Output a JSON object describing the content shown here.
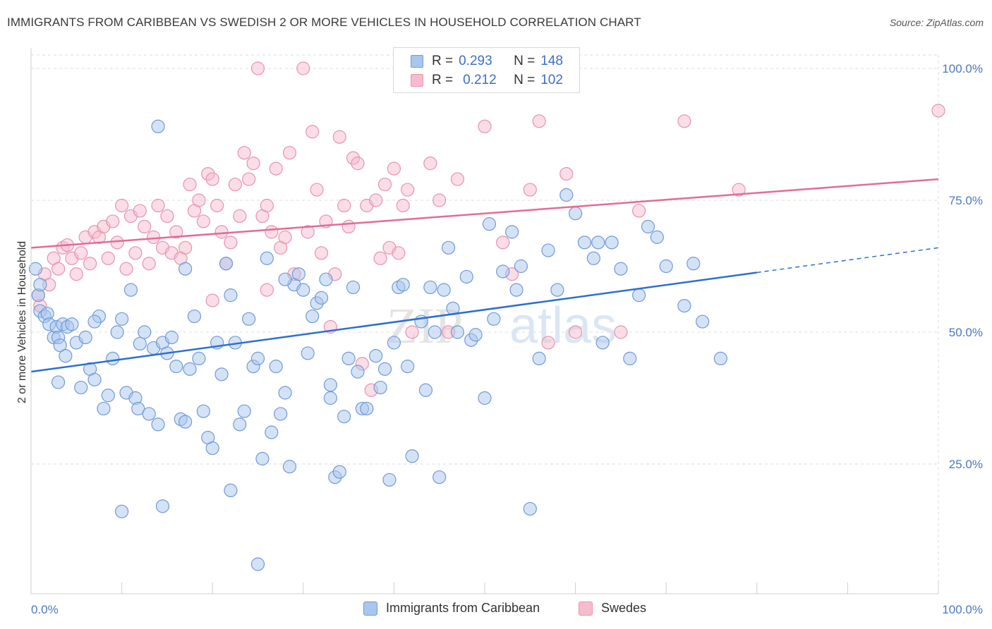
{
  "title": "IMMIGRANTS FROM CARIBBEAN VS SWEDISH 2 OR MORE VEHICLES IN HOUSEHOLD CORRELATION CHART",
  "source": "Source: ZipAtlas.com",
  "watermark_a": "ZIP",
  "watermark_b": "atlas",
  "legend_top": {
    "rows": [
      {
        "r_label": "R =",
        "r_value": "0.293",
        "n_label": "N =",
        "n_value": "148"
      },
      {
        "r_label": "R =",
        "r_value": "0.212",
        "n_label": "N =",
        "n_value": "102"
      }
    ]
  },
  "legend_bottom": [
    "Immigrants from Caribbean",
    "Swedes"
  ],
  "colors": {
    "blue_fill": "#a9c6ee",
    "blue_stroke": "#6f9bd8",
    "blue_line": "#2d6fd1",
    "pink_fill": "#f6bccd",
    "pink_stroke": "#e893ad",
    "pink_line": "#e46b97",
    "grid": "#dedede",
    "tick_text": "#4a78c2"
  },
  "chart_data": {
    "type": "scatter",
    "title": "IMMIGRANTS FROM CARIBBEAN VS SWEDISH 2 OR MORE VEHICLES IN HOUSEHOLD CORRELATION CHART",
    "xlabel": "",
    "ylabel": "2 or more Vehicles in Household",
    "xlim": [
      0,
      100
    ],
    "ylim": [
      0,
      105
    ],
    "x_tick_labels": [
      "0.0%",
      "100.0%"
    ],
    "y_ticks": [
      25,
      50,
      75,
      100
    ],
    "y_tick_labels": [
      "25.0%",
      "50.0%",
      "75.0%",
      "100.0%"
    ],
    "grid": true,
    "legend_position": "top-center",
    "series": [
      {
        "name": "Immigrants from Caribbean",
        "R": 0.293,
        "N": 148,
        "trend": {
          "x0": 0,
          "y0": 42.5,
          "x1": 80,
          "y1": 61.3,
          "dashed_to_x": 100,
          "dashed_to_y": 66.0
        },
        "points": [
          [
            0.5,
            62
          ],
          [
            0.8,
            57
          ],
          [
            1,
            54
          ],
          [
            1.5,
            53
          ],
          [
            1.8,
            53.5
          ],
          [
            2,
            51.5
          ],
          [
            2.5,
            49
          ],
          [
            2.8,
            51
          ],
          [
            3,
            49
          ],
          [
            3.2,
            47.5
          ],
          [
            3.5,
            51.5
          ],
          [
            3.8,
            45.5
          ],
          [
            4,
            51
          ],
          [
            4.5,
            51.5
          ],
          [
            5,
            48
          ],
          [
            5.5,
            39.5
          ],
          [
            6,
            49
          ],
          [
            6.5,
            43
          ],
          [
            7,
            41
          ],
          [
            7.5,
            53
          ],
          [
            8,
            35.5
          ],
          [
            8.5,
            38
          ],
          [
            9,
            45
          ],
          [
            9.5,
            50
          ],
          [
            10,
            52.5
          ],
          [
            10.5,
            38.5
          ],
          [
            11,
            58
          ],
          [
            11.5,
            37.5
          ],
          [
            11.8,
            35.5
          ],
          [
            12,
            47.8
          ],
          [
            12.5,
            50
          ],
          [
            13,
            34.5
          ],
          [
            13.5,
            47
          ],
          [
            14,
            32.5
          ],
          [
            14.5,
            48
          ],
          [
            15,
            46
          ],
          [
            15.5,
            49
          ],
          [
            16,
            43.5
          ],
          [
            16.5,
            33.5
          ],
          [
            17,
            33
          ],
          [
            17.5,
            43
          ],
          [
            18,
            53
          ],
          [
            18.5,
            45
          ],
          [
            19,
            35
          ],
          [
            19.5,
            30
          ],
          [
            20,
            28
          ],
          [
            20.5,
            48
          ],
          [
            21,
            42
          ],
          [
            21.5,
            63
          ],
          [
            22,
            57
          ],
          [
            22.5,
            48
          ],
          [
            23,
            32.5
          ],
          [
            23.5,
            35
          ],
          [
            24,
            52.5
          ],
          [
            24.5,
            43.5
          ],
          [
            25,
            45
          ],
          [
            25.5,
            26
          ],
          [
            26,
            64
          ],
          [
            26.5,
            31
          ],
          [
            27,
            43.5
          ],
          [
            27.5,
            34.5
          ],
          [
            28,
            38.5
          ],
          [
            28.5,
            24.5
          ],
          [
            29,
            59
          ],
          [
            29.5,
            61
          ],
          [
            30,
            58
          ],
          [
            30.5,
            46
          ],
          [
            31,
            53
          ],
          [
            31.5,
            55.5
          ],
          [
            32,
            56.5
          ],
          [
            32.5,
            60
          ],
          [
            33,
            37.5
          ],
          [
            33.5,
            22.5
          ],
          [
            34,
            23.5
          ],
          [
            34.5,
            34
          ],
          [
            35,
            45
          ],
          [
            35.5,
            58.5
          ],
          [
            36,
            42.5
          ],
          [
            36.5,
            35.5
          ],
          [
            37,
            35.5
          ],
          [
            38,
            45.5
          ],
          [
            38.5,
            39.5
          ],
          [
            39,
            43
          ],
          [
            39.5,
            22
          ],
          [
            40,
            48
          ],
          [
            40.5,
            58.5
          ],
          [
            41,
            59
          ],
          [
            41.5,
            43.5
          ],
          [
            42,
            26.5
          ],
          [
            43,
            52
          ],
          [
            43.5,
            39
          ],
          [
            44,
            58.5
          ],
          [
            44.5,
            50
          ],
          [
            45,
            22.5
          ],
          [
            45.5,
            58
          ],
          [
            46,
            66
          ],
          [
            46.5,
            54.5
          ],
          [
            47,
            50
          ],
          [
            48,
            60.5
          ],
          [
            48.5,
            48.5
          ],
          [
            49,
            49.5
          ],
          [
            50,
            37.5
          ],
          [
            50.5,
            70.5
          ],
          [
            51,
            52.5
          ],
          [
            52,
            61.5
          ],
          [
            53,
            69
          ],
          [
            53.5,
            58
          ],
          [
            54,
            62.5
          ],
          [
            55,
            16.5
          ],
          [
            56,
            45
          ],
          [
            57,
            65.5
          ],
          [
            58,
            58
          ],
          [
            59,
            76
          ],
          [
            60,
            72.5
          ],
          [
            61,
            67
          ],
          [
            62,
            64
          ],
          [
            62.5,
            67
          ],
          [
            63,
            48
          ],
          [
            64,
            67
          ],
          [
            65,
            62
          ],
          [
            66,
            45
          ],
          [
            67,
            57
          ],
          [
            68,
            70
          ],
          [
            69,
            68
          ],
          [
            70,
            62.5
          ],
          [
            72,
            55
          ],
          [
            73,
            63
          ],
          [
            74,
            52
          ],
          [
            76,
            45
          ],
          [
            14,
            89
          ],
          [
            1,
            59
          ],
          [
            7,
            52
          ],
          [
            17,
            62
          ],
          [
            28,
            60
          ],
          [
            33,
            40
          ],
          [
            3,
            40.5
          ],
          [
            10,
            16
          ],
          [
            14.5,
            17
          ],
          [
            22,
            20
          ],
          [
            25,
            6
          ]
        ]
      },
      {
        "name": "Swedes",
        "R": 0.212,
        "N": 102,
        "trend": {
          "x0": 0,
          "y0": 66.0,
          "x1": 100,
          "y1": 79.0
        },
        "points": [
          [
            0.8,
            57
          ],
          [
            1,
            55
          ],
          [
            1.5,
            61
          ],
          [
            2,
            59
          ],
          [
            2.5,
            64
          ],
          [
            3,
            62
          ],
          [
            3.5,
            66
          ],
          [
            4,
            66.5
          ],
          [
            4.5,
            64
          ],
          [
            5,
            61
          ],
          [
            5.5,
            65
          ],
          [
            6,
            68
          ],
          [
            6.5,
            63
          ],
          [
            7,
            69
          ],
          [
            7.5,
            68
          ],
          [
            8,
            70
          ],
          [
            8.5,
            64
          ],
          [
            9,
            71
          ],
          [
            9.5,
            67
          ],
          [
            10,
            74
          ],
          [
            10.5,
            62
          ],
          [
            11,
            72
          ],
          [
            11.5,
            65
          ],
          [
            12,
            73
          ],
          [
            12.5,
            70
          ],
          [
            13,
            63
          ],
          [
            13.5,
            68
          ],
          [
            14,
            74
          ],
          [
            14.5,
            66
          ],
          [
            15,
            72
          ],
          [
            15.5,
            65
          ],
          [
            16,
            69
          ],
          [
            16.5,
            64
          ],
          [
            17,
            66
          ],
          [
            17.5,
            78
          ],
          [
            18,
            73
          ],
          [
            18.5,
            75
          ],
          [
            19,
            71
          ],
          [
            19.5,
            80
          ],
          [
            20,
            79
          ],
          [
            20.5,
            74
          ],
          [
            21,
            69
          ],
          [
            21.5,
            63
          ],
          [
            22,
            67
          ],
          [
            22.5,
            78
          ],
          [
            23,
            72
          ],
          [
            23.5,
            84
          ],
          [
            24,
            79
          ],
          [
            24.5,
            82
          ],
          [
            25,
            100
          ],
          [
            25.5,
            72
          ],
          [
            26,
            74
          ],
          [
            26.5,
            69
          ],
          [
            27,
            81
          ],
          [
            27.5,
            66
          ],
          [
            28,
            68
          ],
          [
            28.5,
            84
          ],
          [
            29,
            61
          ],
          [
            30,
            100
          ],
          [
            30.5,
            69
          ],
          [
            31,
            88
          ],
          [
            31.5,
            77
          ],
          [
            32,
            65
          ],
          [
            32.5,
            71
          ],
          [
            33,
            51
          ],
          [
            33.5,
            61
          ],
          [
            34,
            87
          ],
          [
            34.5,
            74
          ],
          [
            35,
            70
          ],
          [
            35.5,
            83
          ],
          [
            36,
            82
          ],
          [
            36.5,
            44
          ],
          [
            37,
            74
          ],
          [
            37.5,
            39
          ],
          [
            38,
            75
          ],
          [
            38.5,
            64
          ],
          [
            39,
            78
          ],
          [
            39.5,
            66
          ],
          [
            40,
            81
          ],
          [
            40.5,
            65
          ],
          [
            41,
            74
          ],
          [
            41.5,
            77
          ],
          [
            42,
            50
          ],
          [
            44,
            82
          ],
          [
            45,
            75
          ],
          [
            46,
            50
          ],
          [
            47,
            79
          ],
          [
            50,
            89
          ],
          [
            52,
            67
          ],
          [
            53,
            61
          ],
          [
            55,
            77
          ],
          [
            56,
            90
          ],
          [
            57,
            48
          ],
          [
            59,
            80
          ],
          [
            60,
            50
          ],
          [
            65,
            50
          ],
          [
            67,
            73
          ],
          [
            72,
            90
          ],
          [
            78,
            77
          ],
          [
            100,
            92
          ],
          [
            26,
            58
          ],
          [
            20,
            56
          ]
        ]
      }
    ]
  }
}
